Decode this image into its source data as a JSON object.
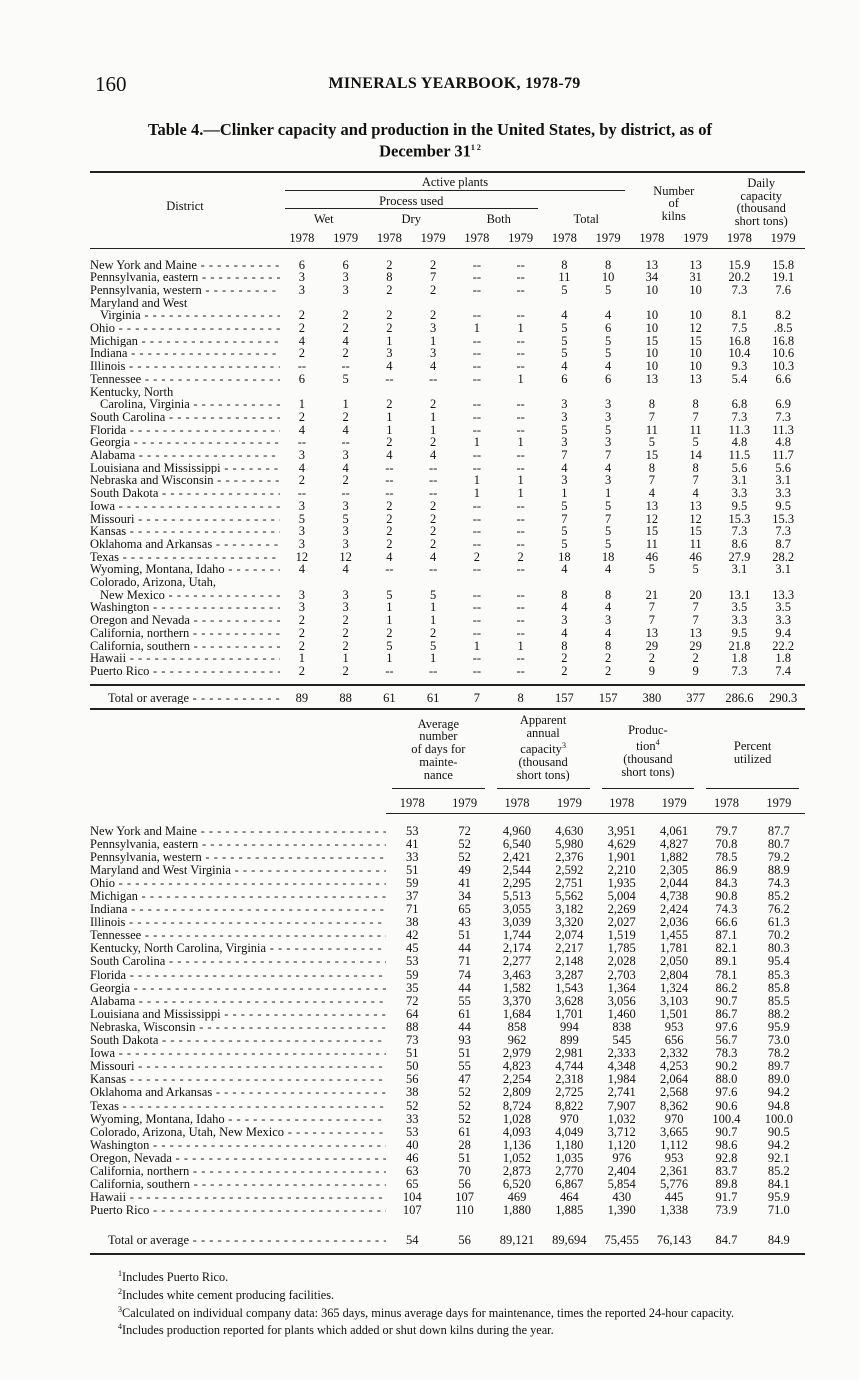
{
  "page_number": "160",
  "running_head": "MINERALS YEARBOOK, 1978-79",
  "title": "Table 4.—Clinker capacity and production in the United States, by district, as of",
  "title_line2": "December 31",
  "title_footnote_refs": "1 2",
  "table1": {
    "headers": {
      "district": "District",
      "active_plants": "Active plants",
      "process_used": "Process used",
      "wet": "Wet",
      "dry": "Dry",
      "both": "Both",
      "total": "Total",
      "kilns": [
        "Number",
        "of",
        "kilns"
      ],
      "daily_capacity": [
        "Daily",
        "capacity",
        "(thousand",
        "short tons)"
      ],
      "years": [
        "1978",
        "1979",
        "1978",
        "1979",
        "1978",
        "1979",
        "1978",
        "1979",
        "1978",
        "1979",
        "1978",
        "1979"
      ]
    },
    "rows": [
      {
        "district": [
          "New York and Maine"
        ],
        "values": [
          "6",
          "6",
          "2",
          "2",
          "--",
          "--",
          "8",
          "8",
          "13",
          "13",
          "15.9",
          "15.8"
        ]
      },
      {
        "district": [
          "Pennsylvania, eastern"
        ],
        "values": [
          "3",
          "3",
          "8",
          "7",
          "--",
          "--",
          "11",
          "10",
          "34",
          "31",
          "20.2",
          "19.1"
        ]
      },
      {
        "district": [
          "Pennsylvania, western"
        ],
        "values": [
          "3",
          "3",
          "2",
          "2",
          "--",
          "--",
          "5",
          "5",
          "10",
          "10",
          "7.3",
          "7.6"
        ]
      },
      {
        "district": [
          "Maryland and West",
          "Virginia"
        ],
        "values": [
          "2",
          "2",
          "2",
          "2",
          "--",
          "--",
          "4",
          "4",
          "10",
          "10",
          "8.1",
          "8.2"
        ]
      },
      {
        "district": [
          "Ohio"
        ],
        "values": [
          "2",
          "2",
          "2",
          "3",
          "1",
          "1",
          "5",
          "6",
          "10",
          "12",
          "7.5",
          ".8.5"
        ]
      },
      {
        "district": [
          "Michigan"
        ],
        "values": [
          "4",
          "4",
          "1",
          "1",
          "--",
          "--",
          "5",
          "5",
          "15",
          "15",
          "16.8",
          "16.8"
        ]
      },
      {
        "district": [
          "Indiana"
        ],
        "values": [
          "2",
          "2",
          "3",
          "3",
          "--",
          "--",
          "5",
          "5",
          "10",
          "10",
          "10.4",
          "10.6"
        ]
      },
      {
        "district": [
          "Illinois"
        ],
        "values": [
          "--",
          "--",
          "4",
          "4",
          "--",
          "--",
          "4",
          "4",
          "10",
          "10",
          "9.3",
          "10.3"
        ]
      },
      {
        "district": [
          "Tennessee"
        ],
        "values": [
          "6",
          "5",
          "--",
          "--",
          "--",
          "1",
          "6",
          "6",
          "13",
          "13",
          "5.4",
          "6.6"
        ]
      },
      {
        "district": [
          "Kentucky, North",
          "Carolina, Virginia"
        ],
        "values": [
          "1",
          "1",
          "2",
          "2",
          "--",
          "--",
          "3",
          "3",
          "8",
          "8",
          "6.8",
          "6.9"
        ]
      },
      {
        "district": [
          "South Carolina"
        ],
        "values": [
          "2",
          "2",
          "1",
          "1",
          "--",
          "--",
          "3",
          "3",
          "7",
          "7",
          "7.3",
          "7.3"
        ]
      },
      {
        "district": [
          "Florida"
        ],
        "values": [
          "4",
          "4",
          "1",
          "1",
          "--",
          "--",
          "5",
          "5",
          "11",
          "11",
          "11.3",
          "11.3"
        ]
      },
      {
        "district": [
          "Georgia"
        ],
        "values": [
          "--",
          "--",
          "2",
          "2",
          "1",
          "1",
          "3",
          "3",
          "5",
          "5",
          "4.8",
          "4.8"
        ]
      },
      {
        "district": [
          "Alabama"
        ],
        "values": [
          "3",
          "3",
          "4",
          "4",
          "--",
          "--",
          "7",
          "7",
          "15",
          "14",
          "11.5",
          "11.7"
        ]
      },
      {
        "district": [
          "Louisiana and Mississippi"
        ],
        "values": [
          "4",
          "4",
          "--",
          "--",
          "--",
          "--",
          "4",
          "4",
          "8",
          "8",
          "5.6",
          "5.6"
        ]
      },
      {
        "district": [
          "Nebraska and Wisconsin"
        ],
        "values": [
          "2",
          "2",
          "--",
          "--",
          "1",
          "1",
          "3",
          "3",
          "7",
          "7",
          "3.1",
          "3.1"
        ]
      },
      {
        "district": [
          "South Dakota"
        ],
        "values": [
          "--",
          "--",
          "--",
          "--",
          "1",
          "1",
          "1",
          "1",
          "4",
          "4",
          "3.3",
          "3.3"
        ]
      },
      {
        "district": [
          "Iowa"
        ],
        "values": [
          "3",
          "3",
          "2",
          "2",
          "--",
          "--",
          "5",
          "5",
          "13",
          "13",
          "9.5",
          "9.5"
        ]
      },
      {
        "district": [
          "Missouri"
        ],
        "values": [
          "5",
          "5",
          "2",
          "2",
          "--",
          "--",
          "7",
          "7",
          "12",
          "12",
          "15.3",
          "15.3"
        ]
      },
      {
        "district": [
          "Kansas"
        ],
        "values": [
          "3",
          "3",
          "2",
          "2",
          "--",
          "--",
          "5",
          "5",
          "15",
          "15",
          "7.3",
          "7.3"
        ]
      },
      {
        "district": [
          "Oklahoma and Arkansas"
        ],
        "values": [
          "3",
          "3",
          "2",
          "2",
          "--",
          "--",
          "5",
          "5",
          "11",
          "11",
          "8.6",
          "8.7"
        ]
      },
      {
        "district": [
          "Texas"
        ],
        "values": [
          "12",
          "12",
          "4",
          "4",
          "2",
          "2",
          "18",
          "18",
          "46",
          "46",
          "27.9",
          "28.2"
        ]
      },
      {
        "district": [
          "Wyoming, Montana, Idaho"
        ],
        "values": [
          "4",
          "4",
          "--",
          "--",
          "--",
          "--",
          "4",
          "4",
          "5",
          "5",
          "3.1",
          "3.1"
        ]
      },
      {
        "district": [
          "Colorado, Arizona, Utah,",
          "New Mexico"
        ],
        "values": [
          "3",
          "3",
          "5",
          "5",
          "--",
          "--",
          "8",
          "8",
          "21",
          "20",
          "13.1",
          "13.3"
        ]
      },
      {
        "district": [
          "Washington"
        ],
        "values": [
          "3",
          "3",
          "1",
          "1",
          "--",
          "--",
          "4",
          "4",
          "7",
          "7",
          "3.5",
          "3.5"
        ]
      },
      {
        "district": [
          "Oregon and Nevada"
        ],
        "values": [
          "2",
          "2",
          "1",
          "1",
          "--",
          "--",
          "3",
          "3",
          "7",
          "7",
          "3.3",
          "3.3"
        ]
      },
      {
        "district": [
          "California, northern"
        ],
        "values": [
          "2",
          "2",
          "2",
          "2",
          "--",
          "--",
          "4",
          "4",
          "13",
          "13",
          "9.5",
          "9.4"
        ]
      },
      {
        "district": [
          "California, southern"
        ],
        "values": [
          "2",
          "2",
          "5",
          "5",
          "1",
          "1",
          "8",
          "8",
          "29",
          "29",
          "21.8",
          "22.2"
        ]
      },
      {
        "district": [
          "Hawaii"
        ],
        "values": [
          "1",
          "1",
          "1",
          "1",
          "--",
          "--",
          "2",
          "2",
          "2",
          "2",
          "1.8",
          "1.8"
        ]
      },
      {
        "district": [
          "Puerto Rico"
        ],
        "values": [
          "2",
          "2",
          "--",
          "--",
          "--",
          "--",
          "2",
          "2",
          "9",
          "9",
          "7.3",
          "7.4"
        ]
      }
    ],
    "total": {
      "label": "Total or average",
      "values": [
        "89",
        "88",
        "61",
        "61",
        "7",
        "8",
        "157",
        "157",
        "380",
        "377",
        "286.6",
        "290.3"
      ]
    }
  },
  "table2": {
    "headers": {
      "maintenance": [
        "Average",
        "number",
        "of days for",
        "mainte-",
        "nance"
      ],
      "capacity": [
        "Apparent",
        "annual",
        "capacity",
        "(thousand",
        "short tons)"
      ],
      "capacity_ref": "3",
      "production": [
        "Produc-",
        "tion",
        "(thousand",
        "short tons)"
      ],
      "production_ref": "4",
      "percent": [
        "Percent",
        "utilized"
      ],
      "years": [
        "1978",
        "1979",
        "1978",
        "1979",
        "1978",
        "1979",
        "1978",
        "1979"
      ]
    },
    "rows": [
      {
        "district": "New York and Maine",
        "values": [
          "53",
          "72",
          "4,960",
          "4,630",
          "3,951",
          "4,061",
          "79.7",
          "87.7"
        ]
      },
      {
        "district": "Pennsylvania, eastern",
        "values": [
          "41",
          "52",
          "6,540",
          "5,980",
          "4,629",
          "4,827",
          "70.8",
          "80.7"
        ]
      },
      {
        "district": "Pennsylvania, western",
        "values": [
          "33",
          "52",
          "2,421",
          "2,376",
          "1,901",
          "1,882",
          "78.5",
          "79.2"
        ]
      },
      {
        "district": "Maryland and West Virginia",
        "values": [
          "51",
          "49",
          "2,544",
          "2,592",
          "2,210",
          "2,305",
          "86.9",
          "88.9"
        ]
      },
      {
        "district": "Ohio",
        "values": [
          "59",
          "41",
          "2,295",
          "2,751",
          "1,935",
          "2,044",
          "84.3",
          "74.3"
        ]
      },
      {
        "district": "Michigan",
        "values": [
          "37",
          "34",
          "5,513",
          "5,562",
          "5,004",
          "4,738",
          "90.8",
          "85.2"
        ]
      },
      {
        "district": "Indiana",
        "values": [
          "71",
          "65",
          "3,055",
          "3,182",
          "2,269",
          "2,424",
          "74.3",
          "76.2"
        ]
      },
      {
        "district": "Illinois",
        "values": [
          "38",
          "43",
          "3,039",
          "3,320",
          "2,027",
          "2,036",
          "66.6",
          "61.3"
        ]
      },
      {
        "district": "Tennessee",
        "values": [
          "42",
          "51",
          "1,744",
          "2,074",
          "1,519",
          "1,455",
          "87.1",
          "70.2"
        ]
      },
      {
        "district": "Kentucky, North Carolina, Virginia",
        "values": [
          "45",
          "44",
          "2,174",
          "2,217",
          "1,785",
          "1,781",
          "82.1",
          "80.3"
        ]
      },
      {
        "district": "South Carolina",
        "values": [
          "53",
          "71",
          "2,277",
          "2,148",
          "2,028",
          "2,050",
          "89.1",
          "95.4"
        ]
      },
      {
        "district": "Florida",
        "values": [
          "59",
          "74",
          "3,463",
          "3,287",
          "2,703",
          "2,804",
          "78.1",
          "85.3"
        ]
      },
      {
        "district": "Georgia",
        "values": [
          "35",
          "44",
          "1,582",
          "1,543",
          "1,364",
          "1,324",
          "86.2",
          "85.8"
        ]
      },
      {
        "district": "Alabama",
        "values": [
          "72",
          "55",
          "3,370",
          "3,628",
          "3,056",
          "3,103",
          "90.7",
          "85.5"
        ]
      },
      {
        "district": "Louisiana and Mississippi",
        "values": [
          "64",
          "61",
          "1,684",
          "1,701",
          "1,460",
          "1,501",
          "86.7",
          "88.2"
        ]
      },
      {
        "district": "Nebraska, Wisconsin",
        "values": [
          "88",
          "44",
          "858",
          "994",
          "838",
          "953",
          "97.6",
          "95.9"
        ]
      },
      {
        "district": "South Dakota",
        "values": [
          "73",
          "93",
          "962",
          "899",
          "545",
          "656",
          "56.7",
          "73.0"
        ]
      },
      {
        "district": "Iowa",
        "values": [
          "51",
          "51",
          "2,979",
          "2,981",
          "2,333",
          "2,332",
          "78.3",
          "78.2"
        ]
      },
      {
        "district": "Missouri",
        "values": [
          "50",
          "55",
          "4,823",
          "4,744",
          "4,348",
          "4,253",
          "90.2",
          "89.7"
        ]
      },
      {
        "district": "Kansas",
        "values": [
          "56",
          "47",
          "2,254",
          "2,318",
          "1,984",
          "2,064",
          "88.0",
          "89.0"
        ]
      },
      {
        "district": "Oklahoma and Arkansas",
        "values": [
          "38",
          "52",
          "2,809",
          "2,725",
          "2,741",
          "2,568",
          "97.6",
          "94.2"
        ]
      },
      {
        "district": "Texas",
        "values": [
          "52",
          "52",
          "8,724",
          "8,822",
          "7,907",
          "8,362",
          "90.6",
          "94.8"
        ]
      },
      {
        "district": "Wyoming, Montana, Idaho",
        "values": [
          "33",
          "52",
          "1,028",
          "970",
          "1,032",
          "970",
          "100.4",
          "100.0"
        ]
      },
      {
        "district": "Colorado, Arizona, Utah, New Mexico",
        "values": [
          "53",
          "61",
          "4,093",
          "4,049",
          "3,712",
          "3,665",
          "90.7",
          "90.5"
        ]
      },
      {
        "district": "Washington",
        "values": [
          "40",
          "28",
          "1,136",
          "1,180",
          "1,120",
          "1,112",
          "98.6",
          "94.2"
        ]
      },
      {
        "district": "Oregon, Nevada",
        "values": [
          "46",
          "51",
          "1,052",
          "1,035",
          "976",
          "953",
          "92.8",
          "92.1"
        ]
      },
      {
        "district": "California, northern",
        "values": [
          "63",
          "70",
          "2,873",
          "2,770",
          "2,404",
          "2,361",
          "83.7",
          "85.2"
        ]
      },
      {
        "district": "California, southern",
        "values": [
          "65",
          "56",
          "6,520",
          "6,867",
          "5,854",
          "5,776",
          "89.8",
          "84.1"
        ]
      },
      {
        "district": "Hawaii",
        "values": [
          "104",
          "107",
          "469",
          "464",
          "430",
          "445",
          "91.7",
          "95.9"
        ]
      },
      {
        "district": "Puerto Rico",
        "values": [
          "107",
          "110",
          "1,880",
          "1,885",
          "1,390",
          "1,338",
          "73.9",
          "71.0"
        ]
      }
    ],
    "total": {
      "label": "Total or average",
      "values": [
        "54",
        "56",
        "89,121",
        "89,694",
        "75,455",
        "76,143",
        "84.7",
        "84.9"
      ]
    }
  },
  "footnotes": [
    {
      "ref": "1",
      "text": "Includes Puerto Rico."
    },
    {
      "ref": "2",
      "text": "Includes white cement producing facilities."
    },
    {
      "ref": "3",
      "text": "Calculated on individual company data: 365 days, minus average days for maintenance, times the reported 24-hour capacity."
    },
    {
      "ref": "4",
      "text": "Includes production reported for plants which added or shut down kilns during the year."
    }
  ]
}
